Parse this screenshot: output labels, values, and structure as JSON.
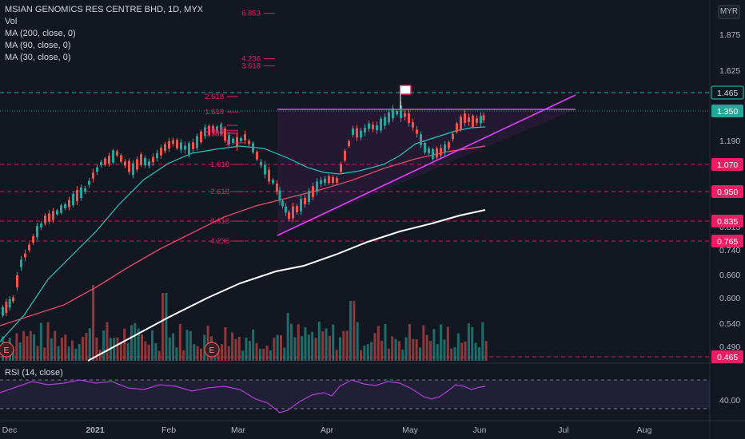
{
  "legend": {
    "title": "MSIAN GENOMICS RES CENTRE BHD, 1D, MYX",
    "vol": "Vol",
    "ma200": "MA (200, close, 0)",
    "ma90": "MA (90, close, 0)",
    "ma30": "MA (30, close, 0)"
  },
  "rsi_label": "RSI (14, close)",
  "scale_button": "MYR",
  "colors": {
    "background": "#131722",
    "up": "#26a69a",
    "down": "#ef5350",
    "ma200": "#ffffff",
    "ma90": "#e04a64",
    "ma30": "#26c6bd",
    "trendline": "#e040fb",
    "rsi": "#b33bd6",
    "fib": "#e91e63",
    "price_tag": "#e91e63",
    "last_price_tag": "#26a69a"
  },
  "chart_data": {
    "type": "candlestick",
    "title": "MSIAN GENOMICS RES CENTRE BHD, 1D, MYX",
    "x_tick_labels": [
      "Dec",
      "2021",
      "Feb",
      "Mar",
      "Apr",
      "May",
      "Jun",
      "Jul",
      "Aug"
    ],
    "y_tick_labels": [
      "1.875",
      "1.625",
      "1.190",
      "0.815",
      "0.740",
      "0.660",
      "0.600",
      "0.540",
      "0.490"
    ],
    "y_range": [
      0.45,
      2.05
    ],
    "price_tags": [
      {
        "label": "1.465",
        "value": 1.465,
        "style": "dashed-teal"
      },
      {
        "label": "1.350",
        "value": 1.35,
        "style": "last"
      },
      {
        "label": "1.070",
        "value": 1.07,
        "style": "dashed-pink"
      },
      {
        "label": "0.950",
        "value": 0.95,
        "style": "dashed-pink"
      },
      {
        "label": "0.835",
        "value": 0.835,
        "style": "dashed-pink"
      },
      {
        "label": "0.765",
        "value": 0.765,
        "style": "dashed-pink"
      },
      {
        "label": "0.465",
        "value": 0.465,
        "style": "dashed-pink"
      }
    ],
    "fib_labels": [
      {
        "label": "6.853",
        "value": 1.99
      },
      {
        "label": "4.236",
        "value": 1.705
      },
      {
        "label": "3.618",
        "value": 1.655
      },
      {
        "label": "2.618",
        "value": 1.44
      },
      {
        "label": "1.618",
        "value": 1.345
      },
      {
        "label": "1",
        "value": 1.272
      },
      {
        "label": "0.618",
        "value": 1.245
      },
      {
        "label": "0.5",
        "value": 1.236
      },
      {
        "label": "0.382",
        "value": 1.226
      },
      {
        "label": "1",
        "value": 1.178
      },
      {
        "label": "1.618",
        "value": 1.07
      },
      {
        "label": "2.618",
        "value": 0.95
      },
      {
        "label": "3.618",
        "value": 0.835
      },
      {
        "label": "4.236",
        "value": 0.765
      }
    ],
    "rsi_tick_labels": [
      "40.00"
    ],
    "earnings_marker": "E",
    "series": [
      {
        "name": "Vol"
      },
      {
        "name": "MA (200, close, 0)"
      },
      {
        "name": "MA (90, close, 0)"
      },
      {
        "name": "MA (30, close, 0)"
      },
      {
        "name": "RSI (14, close)"
      }
    ]
  }
}
